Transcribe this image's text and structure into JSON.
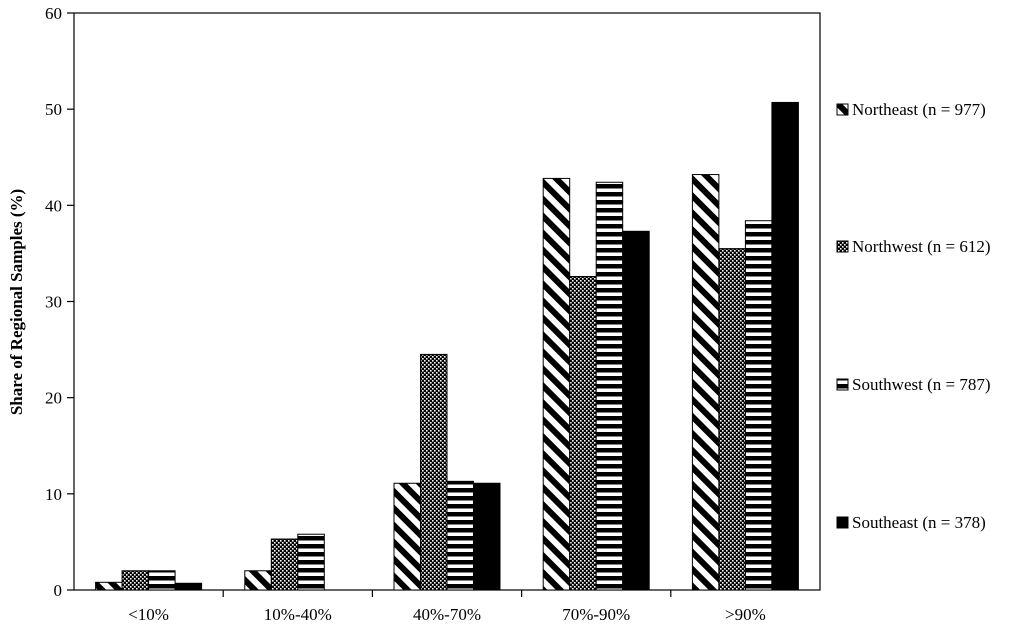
{
  "chart_data": {
    "type": "bar",
    "title": "",
    "xlabel": "",
    "ylabel": "Share of Regional Samples (%)",
    "ylim": [
      0,
      60
    ],
    "yticks": [
      0,
      10,
      20,
      30,
      40,
      50,
      60
    ],
    "grid": false,
    "legend_position": "right",
    "categories": [
      "<10%",
      "10%-40%",
      "40%-70%",
      "70%-90%",
      ">90%"
    ],
    "series": [
      {
        "name": "Northeast (n = 977)",
        "pattern": "diagonal-stripes",
        "values": [
          0.8,
          2.0,
          11.1,
          42.8,
          43.2
        ]
      },
      {
        "name": "Northwest (n = 612)",
        "pattern": "dots",
        "values": [
          2.0,
          5.3,
          24.5,
          32.6,
          35.5
        ]
      },
      {
        "name": "Southwest (n = 787)",
        "pattern": "horizontal-stripes",
        "values": [
          2.0,
          5.8,
          11.3,
          42.4,
          38.4
        ]
      },
      {
        "name": "Southeast (n = 378)",
        "pattern": "solid",
        "values": [
          0.7,
          0.0,
          11.1,
          37.3,
          50.7
        ]
      }
    ],
    "colors": {
      "ink": "#000000",
      "background": "#ffffff"
    }
  }
}
